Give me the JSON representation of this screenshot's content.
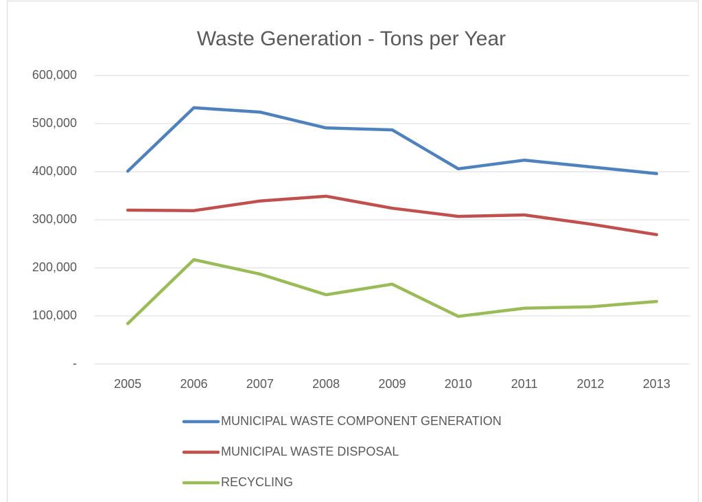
{
  "chart_data": {
    "type": "line",
    "title": "Waste Generation - Tons per Year",
    "categories": [
      "2005",
      "2006",
      "2007",
      "2008",
      "2009",
      "2010",
      "2011",
      "2012",
      "2013"
    ],
    "series": [
      {
        "name": "MUNICIPAL WASTE COMPONENT GENERATION",
        "color": "#4f81bd",
        "values": [
          401000,
          533000,
          524000,
          491000,
          487000,
          406000,
          424000,
          410000,
          396000
        ]
      },
      {
        "name": "MUNICIPAL WASTE DISPOSAL",
        "color": "#c0504d",
        "values": [
          320000,
          319000,
          339000,
          349000,
          324000,
          307000,
          310000,
          291000,
          269000
        ]
      },
      {
        "name": "RECYCLING",
        "color": "#9bbb59",
        "values": [
          84000,
          217000,
          187000,
          144000,
          166000,
          99000,
          116000,
          119000,
          130000
        ]
      }
    ],
    "ylim": [
      0,
      600000
    ],
    "yticks": [
      {
        "value": 0,
        "label": "-"
      },
      {
        "value": 100000,
        "label": "100,000"
      },
      {
        "value": 200000,
        "label": "200,000"
      },
      {
        "value": 300000,
        "label": "300,000"
      },
      {
        "value": 400000,
        "label": "400,000"
      },
      {
        "value": 500000,
        "label": "500,000"
      },
      {
        "value": 600000,
        "label": "600,000"
      }
    ],
    "grid": true,
    "legend": "bottom"
  }
}
